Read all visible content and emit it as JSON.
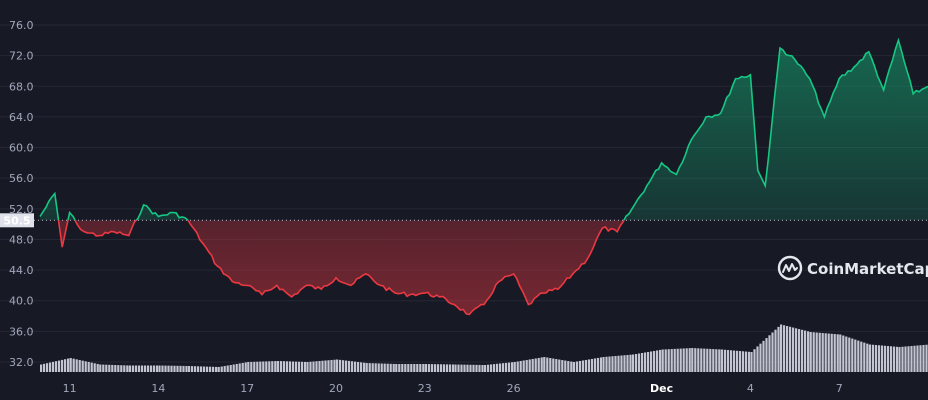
{
  "chart_data": {
    "type": "line",
    "title": "",
    "xlabel": "",
    "ylabel": "",
    "reference_value": 50.5,
    "reference_label": "50.5",
    "ylim": [
      31,
      78
    ],
    "x_range": [
      "2022-11-10",
      "2022-12-10"
    ],
    "y_ticks": [
      "32.0",
      "36.0",
      "40.0",
      "44.0",
      "48.0",
      "52.0",
      "56.0",
      "60.0",
      "64.0",
      "68.0",
      "72.0",
      "76.0"
    ],
    "x_ticks": [
      {
        "label": "11",
        "date": "2022-11-11"
      },
      {
        "label": "14",
        "date": "2022-11-14"
      },
      {
        "label": "17",
        "date": "2022-11-17"
      },
      {
        "label": "20",
        "date": "2022-11-20"
      },
      {
        "label": "23",
        "date": "2022-11-23"
      },
      {
        "label": "26",
        "date": "2022-11-26"
      },
      {
        "label": "Dec",
        "date": "2022-12-01"
      },
      {
        "label": "4",
        "date": "2022-12-04"
      },
      {
        "label": "7",
        "date": "2022-12-07"
      }
    ],
    "series": [
      {
        "x": [
          "2022-11-10",
          "2022-11-10T12:00",
          "2022-11-10T18:00",
          "2022-11-11",
          "2022-11-11T06:00",
          "2022-11-11T12:00",
          "2022-11-12",
          "2022-11-12T12:00",
          "2022-11-13",
          "2022-11-13T12:00",
          "2022-11-14",
          "2022-11-14T12:00",
          "2022-11-15",
          "2022-11-15T12:00",
          "2022-11-16",
          "2022-11-16T12:00",
          "2022-11-17",
          "2022-11-17T12:00",
          "2022-11-18",
          "2022-11-18T12:00",
          "2022-11-19",
          "2022-11-19T12:00",
          "2022-11-20",
          "2022-11-20T12:00",
          "2022-11-21",
          "2022-11-21T12:00",
          "2022-11-22",
          "2022-11-22T12:00",
          "2022-11-23",
          "2022-11-23T12:00",
          "2022-11-24",
          "2022-11-24T12:00",
          "2022-11-25",
          "2022-11-25T12:00",
          "2022-11-26",
          "2022-11-26T12:00",
          "2022-11-27",
          "2022-11-27T12:00",
          "2022-11-28",
          "2022-11-28T12:00",
          "2022-11-29",
          "2022-11-29T12:00",
          "2022-11-30",
          "2022-11-30T12:00",
          "2022-12-01",
          "2022-12-01T12:00",
          "2022-12-02",
          "2022-12-02T12:00",
          "2022-12-03",
          "2022-12-03T12:00",
          "2022-12-04",
          "2022-12-04T06:00",
          "2022-12-04T12:00",
          "2022-12-05",
          "2022-12-05T12:00",
          "2022-12-06",
          "2022-12-06T12:00",
          "2022-12-07",
          "2022-12-07T12:00",
          "2022-12-08",
          "2022-12-08T12:00",
          "2022-12-09",
          "2022-12-09T12:00",
          "2022-12-10"
        ],
        "values": [
          51.0,
          54.0,
          47.0,
          51.5,
          50.0,
          49.0,
          48.5,
          49.0,
          48.5,
          52.5,
          51.0,
          51.5,
          50.5,
          47.5,
          44.5,
          42.5,
          42.0,
          40.8,
          42.0,
          40.5,
          42.0,
          41.5,
          43.0,
          42.0,
          43.5,
          42.0,
          41.0,
          40.8,
          41.0,
          40.5,
          39.5,
          38.2,
          39.5,
          42.5,
          43.5,
          39.5,
          41.0,
          41.5,
          43.5,
          45.5,
          49.5,
          49.0,
          52.0,
          55.0,
          58.0,
          56.5,
          61.0,
          64.0,
          64.5,
          69.0,
          69.5,
          57.0,
          55.0,
          73.0,
          71.5,
          69.0,
          64.0,
          69.0,
          70.5,
          72.5,
          67.5,
          74.0,
          67.0,
          68.0
        ]
      }
    ],
    "volume": {
      "x": [
        "2022-11-10",
        "2022-11-11",
        "2022-11-12",
        "2022-11-13",
        "2022-11-14",
        "2022-11-15",
        "2022-11-16",
        "2022-11-17",
        "2022-11-18",
        "2022-11-19",
        "2022-11-20",
        "2022-11-21",
        "2022-11-22",
        "2022-11-23",
        "2022-11-24",
        "2022-11-25",
        "2022-11-26",
        "2022-11-27",
        "2022-11-28",
        "2022-11-29",
        "2022-11-30",
        "2022-12-01",
        "2022-12-02",
        "2022-12-03",
        "2022-12-04",
        "2022-12-05",
        "2022-12-06",
        "2022-12-07",
        "2022-12-08",
        "2022-12-09",
        "2022-12-10"
      ],
      "values": [
        0.15,
        0.28,
        0.15,
        0.13,
        0.13,
        0.12,
        0.1,
        0.2,
        0.22,
        0.2,
        0.25,
        0.18,
        0.16,
        0.16,
        0.15,
        0.14,
        0.2,
        0.3,
        0.2,
        0.3,
        0.35,
        0.45,
        0.48,
        0.45,
        0.4,
        0.95,
        0.8,
        0.75,
        0.55,
        0.5,
        0.55
      ]
    },
    "colors": {
      "up": "#16c784",
      "down": "#ea3943",
      "volume": "#d6d9e6",
      "background": "#171924",
      "grid": "#242734"
    },
    "grid": true,
    "legend": "none"
  },
  "watermark": {
    "text": "CoinMarketCap"
  }
}
